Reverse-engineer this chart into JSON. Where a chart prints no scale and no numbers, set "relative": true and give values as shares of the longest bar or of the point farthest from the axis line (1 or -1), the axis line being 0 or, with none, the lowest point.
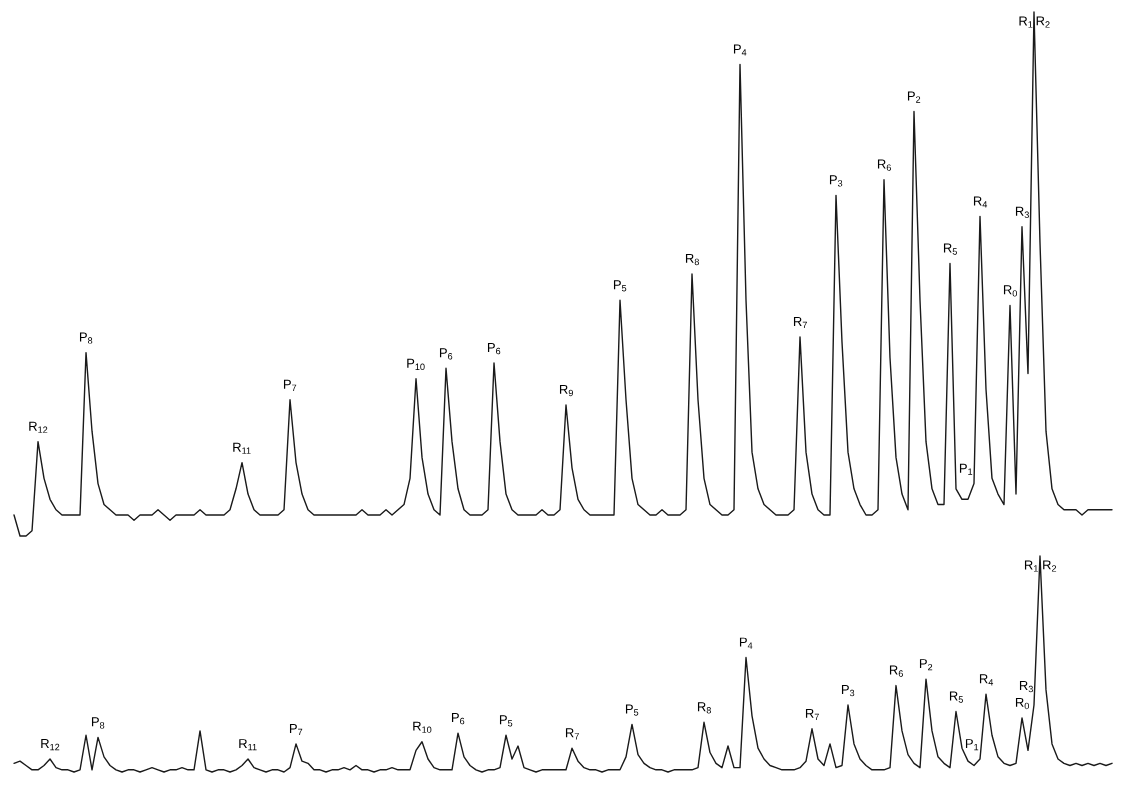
{
  "chart_data": [
    {
      "type": "line",
      "relative": true,
      "categories": [
        null,
        null,
        null,
        null,
        null,
        null,
        null,
        null,
        null,
        null,
        null,
        null,
        null,
        null,
        null,
        null,
        null,
        null,
        null,
        null,
        null,
        null,
        null,
        null,
        null,
        null,
        null,
        null,
        null,
        null,
        null,
        null,
        null,
        null,
        null,
        null,
        null,
        null,
        null,
        null,
        null,
        null,
        null,
        null,
        null,
        null,
        null,
        null,
        null,
        null,
        null,
        null,
        null,
        null,
        null,
        null,
        null,
        null,
        null,
        null,
        null,
        null,
        null,
        null,
        null,
        null,
        null,
        null,
        null,
        null,
        null,
        null,
        null,
        null,
        null,
        null,
        null,
        null,
        null,
        null,
        null,
        null,
        null,
        null,
        null,
        null,
        null,
        null,
        null,
        null,
        null,
        null,
        null,
        null,
        null,
        null,
        null,
        null,
        null,
        null,
        null,
        null,
        null,
        null,
        null,
        null,
        null,
        null,
        null,
        null,
        null,
        null,
        null,
        null,
        null,
        null,
        null,
        null,
        null,
        null,
        null,
        null,
        null,
        null,
        null,
        null,
        null,
        null,
        null,
        null,
        null,
        null,
        null,
        null,
        null,
        null,
        null,
        null,
        null,
        null,
        null,
        null,
        null,
        null,
        null,
        null,
        null,
        null,
        null,
        null,
        null,
        null,
        null,
        null,
        null,
        null,
        null,
        null,
        null,
        null,
        null,
        null,
        null,
        null,
        null,
        null,
        null,
        null,
        null,
        null,
        null,
        null,
        null,
        null,
        null,
        null,
        null,
        null,
        null,
        null,
        null,
        null,
        null,
        null
      ],
      "series": [
        {
          "color": "#1a1a1a",
          "values": [
            0.04,
            0,
            0,
            0.01,
            0.18,
            0.11,
            0.07,
            0.05,
            0.04,
            0.04,
            0.04,
            0.04,
            0.35,
            0.2,
            0.1,
            0.06,
            0.05,
            0.04,
            0.04,
            0.04,
            0.03,
            0.04,
            0.04,
            0.04,
            0.05,
            0.04,
            0.03,
            0.04,
            0.04,
            0.04,
            0.04,
            0.05,
            0.04,
            0.04,
            0.04,
            0.04,
            0.05,
            0.09,
            0.14,
            0.08,
            0.05,
            0.04,
            0.04,
            0.04,
            0.04,
            0.05,
            0.26,
            0.14,
            0.08,
            0.05,
            0.04,
            0.04,
            0.04,
            0.04,
            0.04,
            0.04,
            0.04,
            0.04,
            0.05,
            0.04,
            0.04,
            0.04,
            0.05,
            0.04,
            0.05,
            0.06,
            0.11,
            0.3,
            0.15,
            0.08,
            0.05,
            0.04,
            0.32,
            0.18,
            0.09,
            0.05,
            0.04,
            0.04,
            0.04,
            0.05,
            0.33,
            0.18,
            0.08,
            0.05,
            0.04,
            0.04,
            0.04,
            0.04,
            0.05,
            0.04,
            0.04,
            0.05,
            0.25,
            0.13,
            0.07,
            0.05,
            0.04,
            0.04,
            0.04,
            0.04,
            0.04,
            0.45,
            0.26,
            0.11,
            0.06,
            0.05,
            0.04,
            0.04,
            0.05,
            0.04,
            0.04,
            0.04,
            0.05,
            0.5,
            0.26,
            0.11,
            0.06,
            0.05,
            0.04,
            0.04,
            0.05,
            0.9,
            0.45,
            0.16,
            0.09,
            0.06,
            0.05,
            0.04,
            0.04,
            0.04,
            0.05,
            0.38,
            0.16,
            0.08,
            0.05,
            0.04,
            0.04,
            0.65,
            0.37,
            0.16,
            0.09,
            0.06,
            0.04,
            0.04,
            0.05,
            0.68,
            0.34,
            0.15,
            0.08,
            0.05,
            0.81,
            0.45,
            0.18,
            0.09,
            0.06,
            0.06,
            0.52,
            0.09,
            0.07,
            0.07,
            0.1,
            0.61,
            0.28,
            0.11,
            0.08,
            0.06,
            0.44,
            0.08,
            0.59,
            0.31,
            1,
            0.56,
            0.2,
            0.09,
            0.06,
            0.05,
            0.05,
            0.05,
            0.04,
            0.05,
            0.05,
            0.05,
            0.05,
            0.05
          ]
        }
      ],
      "annotations": [
        {
          "text": "R$_{12}$",
          "y": 0.18
        },
        {
          "text": "P$_{8}$",
          "y": 0.35
        },
        {
          "text": "R$_{11}$",
          "y": 0.14
        },
        {
          "text": "P$_{7}$",
          "y": 0.26
        },
        {
          "text": "P$_{10}$",
          "y": 0.3
        },
        {
          "text": "P$_{6}$",
          "y": 0.32
        },
        {
          "text": "P$_{6}$",
          "y": 0.33
        },
        {
          "text": "R$_{9}$",
          "y": 0.25
        },
        {
          "text": "P$_{5}$",
          "y": 0.45
        },
        {
          "text": "R$_{8}$",
          "y": 0.5
        },
        {
          "text": "P$_{4}$",
          "y": 0.9
        },
        {
          "text": "R$_{7}$",
          "y": 0.38
        },
        {
          "text": "P$_{3}$",
          "y": 0.65
        },
        {
          "text": "R$_{6}$",
          "y": 0.68
        },
        {
          "text": "P$_{2}$",
          "y": 0.81
        },
        {
          "text": "R$_{5}$",
          "y": 0.52
        },
        {
          "text": "P$_{1}$",
          "y": 0.1
        },
        {
          "text": "R$_{4}$",
          "y": 0.61
        },
        {
          "text": "R$_{0}$",
          "y": 0.44
        },
        {
          "text": "R$_{3}$",
          "y": 0.59
        },
        {
          "text": "R$_{1}$",
          "y": 1
        },
        {
          "text": "R$_{2}$",
          "y": 1
        }
      ]
    },
    {
      "type": "line",
      "relative": true,
      "categories": [
        null,
        null,
        null,
        null,
        null,
        null,
        null,
        null,
        null,
        null,
        null,
        null,
        null,
        null,
        null,
        null,
        null,
        null,
        null,
        null,
        null,
        null,
        null,
        null,
        null,
        null,
        null,
        null,
        null,
        null,
        null,
        null,
        null,
        null,
        null,
        null,
        null,
        null,
        null,
        null,
        null,
        null,
        null,
        null,
        null,
        null,
        null,
        null,
        null,
        null,
        null,
        null,
        null,
        null,
        null,
        null,
        null,
        null,
        null,
        null,
        null,
        null,
        null,
        null,
        null,
        null,
        null,
        null,
        null,
        null,
        null,
        null,
        null,
        null,
        null,
        null,
        null,
        null,
        null,
        null,
        null,
        null,
        null,
        null,
        null,
        null,
        null,
        null,
        null,
        null,
        null,
        null,
        null,
        null,
        null,
        null,
        null,
        null,
        null,
        null,
        null,
        null,
        null,
        null,
        null,
        null,
        null,
        null,
        null,
        null,
        null,
        null,
        null,
        null,
        null,
        null,
        null,
        null,
        null,
        null,
        null,
        null,
        null,
        null,
        null,
        null,
        null,
        null,
        null,
        null,
        null,
        null,
        null,
        null,
        null,
        null,
        null,
        null,
        null,
        null,
        null,
        null,
        null,
        null,
        null,
        null,
        null,
        null,
        null,
        null,
        null,
        null,
        null,
        null,
        null,
        null,
        null,
        null,
        null,
        null,
        null,
        null,
        null,
        null,
        null,
        null,
        null,
        null,
        null,
        null,
        null,
        null,
        null,
        null,
        null,
        null,
        null,
        null,
        null,
        null,
        null,
        null,
        null,
        null
      ],
      "series": [
        {
          "color": "#1a1a1a",
          "values": [
            0.04,
            0.05,
            0.03,
            0.01,
            0.01,
            0.03,
            0.06,
            0.02,
            0.01,
            0.01,
            0,
            0.01,
            0.17,
            0.01,
            0.16,
            0.07,
            0.03,
            0.01,
            0,
            0.01,
            0.01,
            0,
            0.01,
            0.02,
            0.01,
            0,
            0.01,
            0.01,
            0.02,
            0.01,
            0.01,
            0.19,
            0.01,
            0,
            0.01,
            0.01,
            0,
            0.01,
            0.03,
            0.06,
            0.02,
            0.01,
            0,
            0.01,
            0.01,
            0,
            0.02,
            0.13,
            0.05,
            0.04,
            0.01,
            0.01,
            0,
            0.01,
            0.01,
            0.02,
            0.01,
            0.03,
            0.01,
            0.01,
            0,
            0.01,
            0.01,
            0.02,
            0.01,
            0.01,
            0.01,
            0.1,
            0.14,
            0.06,
            0.02,
            0.01,
            0.01,
            0.01,
            0.18,
            0.07,
            0.03,
            0.01,
            0,
            0.01,
            0.01,
            0.02,
            0.17,
            0.06,
            0.12,
            0.02,
            0.01,
            0,
            0.01,
            0.01,
            0.01,
            0.01,
            0.01,
            0.11,
            0.05,
            0.02,
            0.01,
            0.01,
            0,
            0.01,
            0.01,
            0.01,
            0.07,
            0.22,
            0.08,
            0.04,
            0.02,
            0.01,
            0.01,
            0,
            0.01,
            0.01,
            0.01,
            0.01,
            0.02,
            0.23,
            0.09,
            0.04,
            0.02,
            0.12,
            0.02,
            0.02,
            0.53,
            0.26,
            0.11,
            0.06,
            0.03,
            0.02,
            0.01,
            0.01,
            0.01,
            0.02,
            0.05,
            0.2,
            0.06,
            0.03,
            0.13,
            0.02,
            0.03,
            0.31,
            0.13,
            0.06,
            0.03,
            0.01,
            0.01,
            0.01,
            0.02,
            0.4,
            0.19,
            0.08,
            0.04,
            0.02,
            0.43,
            0.19,
            0.07,
            0.04,
            0.02,
            0.28,
            0.11,
            0.05,
            0.03,
            0.06,
            0.36,
            0.17,
            0.07,
            0.04,
            0.03,
            0.04,
            0.25,
            0.1,
            0.31,
            1,
            0.38,
            0.13,
            0.06,
            0.04,
            0.03,
            0.04,
            0.03,
            0.04,
            0.03,
            0.04,
            0.03,
            0.04
          ]
        }
      ],
      "annotations": [
        {
          "text": "R$_{12}$",
          "y": 0.06
        },
        {
          "text": "P$_{8}$",
          "y": 0.16
        },
        {
          "text": "R$_{11}$",
          "y": 0.06
        },
        {
          "text": "P$_{7}$",
          "y": 0.13
        },
        {
          "text": "R$_{10}$",
          "y": 0.14
        },
        {
          "text": "P$_{6}$",
          "y": 0.18
        },
        {
          "text": "P$_{5}$",
          "y": 0.17
        },
        {
          "text": "R$_{7}$",
          "y": 0.11
        },
        {
          "text": "P$_{5}$",
          "y": 0.22
        },
        {
          "text": "R$_{8}$",
          "y": 0.23
        },
        {
          "text": "P$_{4}$",
          "y": 0.53
        },
        {
          "text": "R$_{7}$",
          "y": 0.2
        },
        {
          "text": "P$_{3}$",
          "y": 0.31
        },
        {
          "text": "R$_{6}$",
          "y": 0.4
        },
        {
          "text": "P$_{2}$",
          "y": 0.43
        },
        {
          "text": "R$_{5}$",
          "y": 0.28
        },
        {
          "text": "P$_{1}$",
          "y": 0.06
        },
        {
          "text": "R$_{4}$",
          "y": 0.36
        },
        {
          "text": "R$_{0}$",
          "y": 0.25
        },
        {
          "text": "R$_{3}$",
          "y": 0.31
        },
        {
          "text": "R$_{1}$",
          "y": 1
        },
        {
          "text": "R$_{2}$",
          "y": 1
        }
      ]
    }
  ]
}
